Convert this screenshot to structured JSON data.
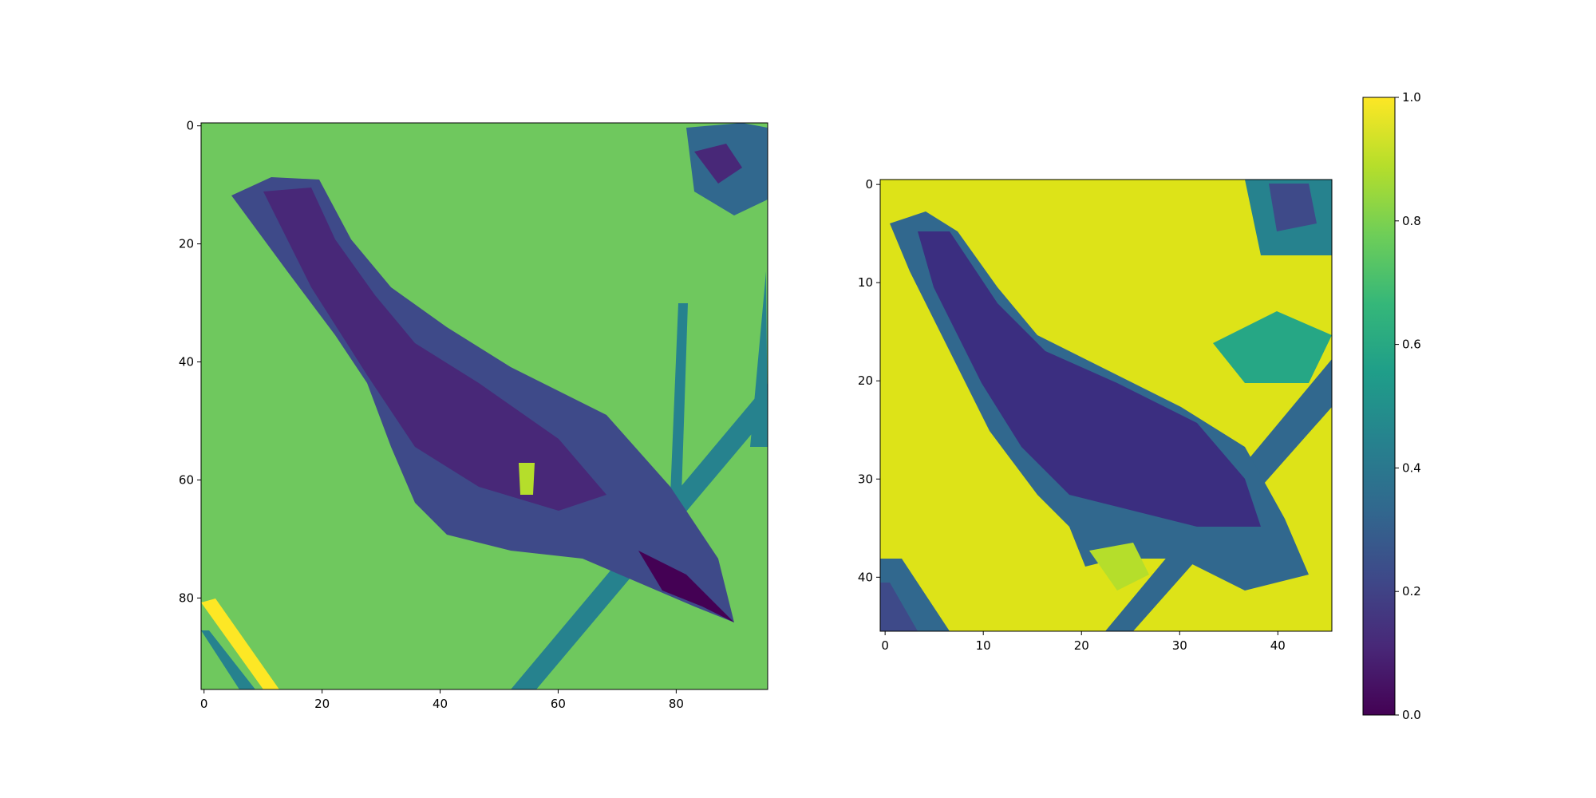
{
  "chart_data": [
    {
      "type": "heatmap",
      "title": "",
      "xlabel": "",
      "ylabel": "",
      "grid": false,
      "shape": [
        96,
        96
      ],
      "xlim": [
        -0.5,
        95.5
      ],
      "ylim": [
        95.5,
        -0.5
      ],
      "x_ticks": [
        "0",
        "20",
        "40",
        "60",
        "80"
      ],
      "y_ticks": [
        "0",
        "20",
        "40",
        "60",
        "80"
      ],
      "colormap": "viridis",
      "description": "bird on a branch"
    },
    {
      "type": "heatmap",
      "title": "",
      "xlabel": "",
      "ylabel": "",
      "grid": false,
      "shape": [
        46,
        46
      ],
      "xlim": [
        -0.5,
        45.5
      ],
      "ylim": [
        45.5,
        -0.5
      ],
      "x_ticks": [
        "0",
        "10",
        "20",
        "30",
        "40"
      ],
      "y_ticks": [
        "0",
        "10",
        "20",
        "30",
        "40"
      ],
      "colormap": "viridis",
      "vmin": 0.0,
      "vmax": 1.0,
      "description": "bird on a branch"
    }
  ],
  "colorbar": {
    "colormap": "viridis",
    "range": [
      0.0,
      1.0
    ],
    "ticks": [
      "0.0",
      "0.2",
      "0.4",
      "0.6",
      "0.8",
      "1.0"
    ]
  },
  "colors": {
    "viridis_stops": [
      "#440154",
      "#482878",
      "#3e4989",
      "#31688e",
      "#26828e",
      "#1f9e89",
      "#35b779",
      "#6ece58",
      "#b5de2b",
      "#fde725"
    ]
  }
}
